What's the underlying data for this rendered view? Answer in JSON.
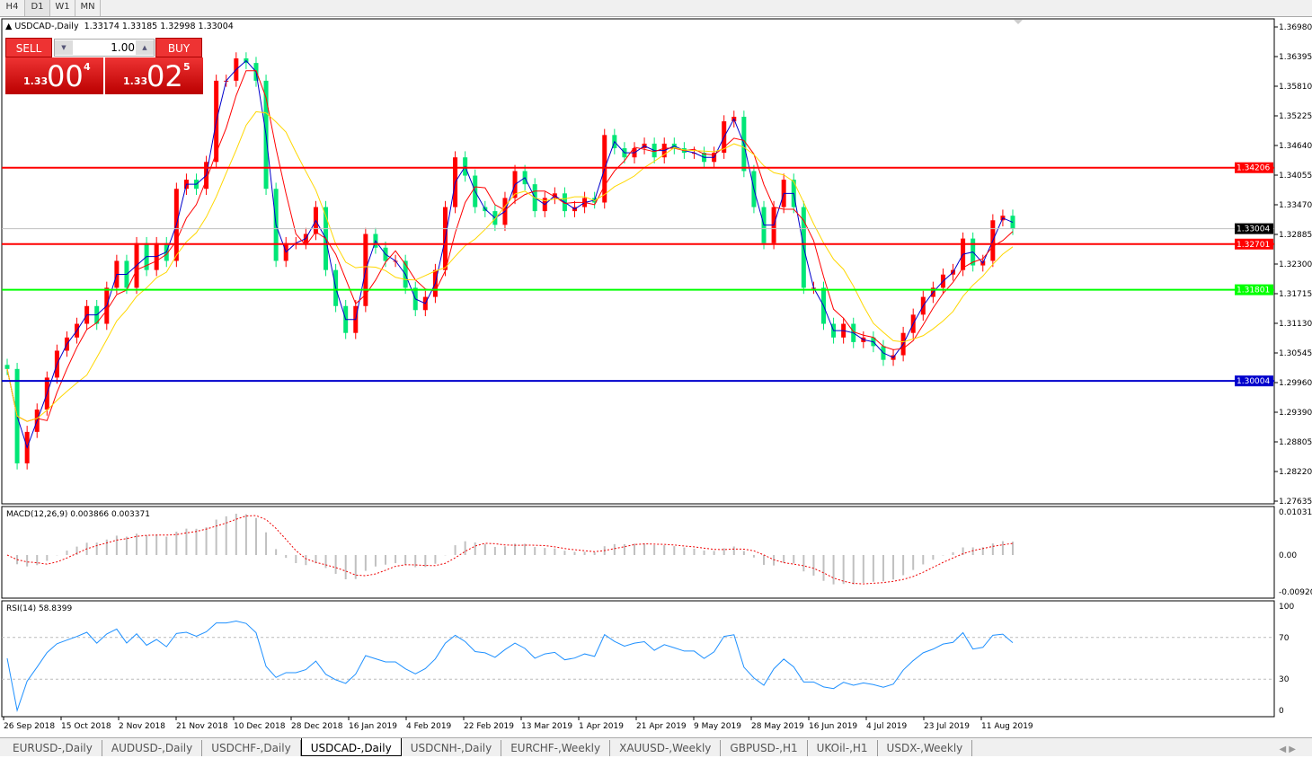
{
  "timeframes": [
    "H4",
    "D1",
    "W1",
    "MN"
  ],
  "selected_timeframe": "D1",
  "chart_title": "USDCAD-,Daily",
  "ohlc_readout": "1.33174 1.33185 1.32998 1.33004",
  "one_click": {
    "sell_label": "SELL",
    "buy_label": "BUY",
    "lot": "1.00",
    "sell_prefix": "1.33",
    "sell_big": "00",
    "sell_pip": "4",
    "buy_prefix": "1.33",
    "buy_big": "02",
    "buy_pip": "5"
  },
  "macd_label": "MACD(12,26,9) 0.003866 0.003371",
  "rsi_label": "RSI(14) 58.8399",
  "colors": {
    "up": "#ff0000",
    "down": "#00e676",
    "ma_fast": "#0000cc",
    "ma_mid": "#ff0000",
    "ma_slow": "#ffd700",
    "rsi": "#1e90ff"
  },
  "chart_data": {
    "type": "candlestick",
    "symbol": "USDCAD-",
    "timeframe": "Daily",
    "ylim": [
      1.27635,
      1.3698
    ],
    "y_ticks": [
      "1.36980",
      "1.36395",
      "1.35810",
      "1.35225",
      "1.34640",
      "1.34055",
      "1.33470",
      "1.32885",
      "1.32300",
      "1.31715",
      "1.31130",
      "1.30545",
      "1.29960",
      "1.29390",
      "1.28805",
      "1.28220",
      "1.27635"
    ],
    "x_ticks": [
      "26 Sep 2018",
      "15 Oct 2018",
      "2 Nov 2018",
      "21 Nov 2018",
      "10 Dec 2018",
      "28 Dec 2018",
      "16 Jan 2019",
      "4 Feb 2019",
      "22 Feb 2019",
      "13 Mar 2019",
      "1 Apr 2019",
      "21 Apr 2019",
      "9 May 2019",
      "28 May 2019",
      "16 Jun 2019",
      "4 Jul 2019",
      "23 Jul 2019",
      "11 Aug 2019"
    ],
    "closes": [
      1.3024,
      1.2838,
      1.29,
      1.2944,
      1.3007,
      1.306,
      1.3086,
      1.3113,
      1.3148,
      1.3113,
      1.3184,
      1.3237,
      1.3184,
      1.3272,
      1.3219,
      1.3272,
      1.3237,
      1.3379,
      1.3397,
      1.3379,
      1.3432,
      1.3592,
      1.3592,
      1.3636,
      1.3627,
      1.3592,
      1.3379,
      1.3237,
      1.3272,
      1.3272,
      1.329,
      1.3343,
      1.3219,
      1.3148,
      1.3095,
      1.3148,
      1.329,
      1.3263,
      1.3237,
      1.3237,
      1.3184,
      1.314,
      1.3166,
      1.3219,
      1.3343,
      1.3441,
      1.3405,
      1.3343,
      1.3335,
      1.3308,
      1.3361,
      1.3414,
      1.3388,
      1.3335,
      1.3361,
      1.337,
      1.3335,
      1.3343,
      1.3361,
      1.3352,
      1.3485,
      1.3459,
      1.3441,
      1.3459,
      1.3468,
      1.3441,
      1.3468,
      1.3459,
      1.345,
      1.345,
      1.3432,
      1.345,
      1.3512,
      1.3521,
      1.3414,
      1.3343,
      1.3272,
      1.3343,
      1.3397,
      1.3343,
      1.3184,
      1.3184,
      1.3113,
      1.3086,
      1.3113,
      1.3077,
      1.3086,
      1.3069,
      1.3042,
      1.3051,
      1.3095,
      1.3131,
      1.3166,
      1.3184,
      1.321,
      1.3219,
      1.3281,
      1.3228,
      1.3237,
      1.3317,
      1.3326,
      1.33
    ],
    "levels": [
      {
        "price": "1.34206",
        "color": "#ff0000"
      },
      {
        "price": "1.32701",
        "color": "#ff0000"
      },
      {
        "price": "1.31801",
        "color": "#00ff00"
      },
      {
        "price": "1.30004",
        "color": "#0000cc"
      }
    ],
    "current_price": "1.33004",
    "macd_ticks": [
      "0.010311",
      "0.00",
      "-0.009203"
    ],
    "rsi_ticks": [
      "100",
      "70",
      "30",
      "0"
    ]
  },
  "tabs": [
    "EURUSD-,Daily",
    "AUDUSD-,Daily",
    "USDCHF-,Daily",
    "USDCAD-,Daily",
    "USDCNH-,Daily",
    "EURCHF-,Weekly",
    "XAUUSD-,Weekly",
    "GBPUSD-,H1",
    "UKOil-,H1",
    "USDX-,Weekly"
  ],
  "selected_tab": "USDCAD-,Daily"
}
